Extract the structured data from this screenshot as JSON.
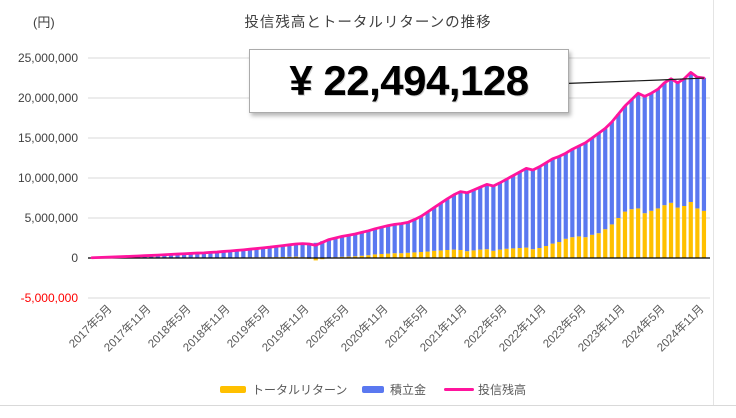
{
  "page": {
    "unit_label": "(円)",
    "title": "投信残高とトータルリターンの推移"
  },
  "callout": {
    "value_label": "¥ 22,494,128",
    "value": 22494128,
    "points_to_index": 93
  },
  "legend": [
    {
      "label": "トータルリターン",
      "color": "#FFC000",
      "swatch": "bar"
    },
    {
      "label": "積立金",
      "color": "#5A78F0",
      "swatch": "bar"
    },
    {
      "label": "投信残高",
      "color": "#FF149D",
      "swatch": "line"
    }
  ],
  "colors": {
    "gridline": "#D9D9D9",
    "zero_axis": "#000000",
    "title_text": "#404040",
    "axis_text": "#595959",
    "negative_tick": "#FF0000",
    "leader_line": "#1a1a1a"
  },
  "chart_data": {
    "type": "bar",
    "subtype": "stacked-bars-with-line",
    "title": "投信残高とトータルリターンの推移",
    "unit": "円",
    "n_points": 94,
    "y_axis": {
      "min": -5000000,
      "max": 25000000,
      "step": 5000000,
      "grid": true,
      "tick_labels": [
        "25,000,000",
        "20,000,000",
        "15,000,000",
        "10,000,000",
        "5,000,000",
        "0",
        "-5,000,000"
      ],
      "tick_values": [
        25000000,
        20000000,
        15000000,
        10000000,
        5000000,
        0,
        -5000000
      ]
    },
    "x_axis": {
      "tick_labels": [
        "2017年5月",
        "2017年11月",
        "2018年5月",
        "2018年11月",
        "2019年5月",
        "2019年11月",
        "2020年5月",
        "2020年11月",
        "2021年5月",
        "2021年11月",
        "2022年5月",
        "2022年11月",
        "2023年5月",
        "2023年11月",
        "2024年5月",
        "2024年11月"
      ],
      "tick_month_indices": [
        0,
        6,
        12,
        18,
        24,
        30,
        36,
        42,
        48,
        54,
        60,
        66,
        72,
        78,
        84,
        90
      ],
      "label_rotation_deg": 45
    },
    "legend_position": "bottom",
    "series": [
      {
        "name": "トータルリターン",
        "type": "bar",
        "stack": 0,
        "color": "#FFC000",
        "values": [
          2000,
          4000,
          7000,
          10000,
          12000,
          16000,
          20000,
          24000,
          28000,
          22000,
          30000,
          38000,
          42000,
          47000,
          52000,
          58000,
          65000,
          50000,
          60000,
          30000,
          50000,
          60000,
          70000,
          60000,
          80000,
          90000,
          100000,
          90000,
          110000,
          130000,
          150000,
          170000,
          100000,
          -100000,
          -300000,
          -150000,
          50000,
          100000,
          150000,
          180000,
          220000,
          280000,
          350000,
          450000,
          500000,
          550000,
          600000,
          600000,
          650000,
          700000,
          750000,
          800000,
          900000,
          950000,
          1000000,
          1050000,
          1000000,
          850000,
          950000,
          1050000,
          1100000,
          900000,
          1050000,
          1150000,
          1200000,
          1250000,
          1300000,
          1100000,
          1250000,
          1500000,
          1800000,
          2000000,
          2400000,
          2600000,
          2700000,
          2600000,
          2900000,
          3100000,
          3600000,
          4200000,
          5000000,
          5800000,
          6100000,
          6200000,
          5600000,
          5900000,
          6200000,
          6600000,
          6900000,
          6300000,
          6500000,
          7000000,
          6200000,
          5894128
        ]
      },
      {
        "name": "積立金",
        "type": "bar",
        "stack": 1,
        "color": "#5A78F0",
        "values": [
          28000,
          56000,
          83000,
          110000,
          138000,
          164000,
          190000,
          226000,
          262000,
          298000,
          330000,
          372000,
          408000,
          443000,
          478000,
          512000,
          555000,
          590000,
          640000,
          710000,
          770000,
          820000,
          880000,
          960000,
          1020000,
          1090000,
          1170000,
          1260000,
          1340000,
          1420000,
          1500000,
          1580000,
          1700000,
          1850000,
          1900000,
          2100000,
          2250000,
          2400000,
          2550000,
          2670000,
          2780000,
          2920000,
          3050000,
          3200000,
          3350000,
          3500000,
          3600000,
          3700000,
          3800000,
          4100000,
          4450000,
          4950000,
          5400000,
          5900000,
          6400000,
          6850000,
          7300000,
          7300000,
          7550000,
          7800000,
          8100000,
          8100000,
          8350000,
          8700000,
          9100000,
          9500000,
          9900000,
          9900000,
          10150000,
          10400000,
          10600000,
          10700000,
          10700000,
          11000000,
          11300000,
          11800000,
          12100000,
          12500000,
          12600000,
          12800000,
          13000000,
          13200000,
          13700000,
          14400000,
          14600000,
          14700000,
          14900000,
          15300000,
          15500000,
          15600000,
          15900000,
          16200000,
          16400000,
          16600000
        ]
      },
      {
        "name": "投信残高",
        "type": "line",
        "color": "#FF149D",
        "values": [
          30000,
          60000,
          90000,
          120000,
          150000,
          180000,
          210000,
          250000,
          290000,
          320000,
          360000,
          410000,
          450000,
          490000,
          530000,
          570000,
          620000,
          640000,
          700000,
          740000,
          820000,
          880000,
          950000,
          1020000,
          1100000,
          1180000,
          1270000,
          1350000,
          1450000,
          1550000,
          1650000,
          1750000,
          1800000,
          1750000,
          1600000,
          1950000,
          2300000,
          2500000,
          2700000,
          2850000,
          3000000,
          3200000,
          3400000,
          3650000,
          3850000,
          4050000,
          4200000,
          4300000,
          4450000,
          4800000,
          5200000,
          5750000,
          6300000,
          6850000,
          7400000,
          7900000,
          8300000,
          8150000,
          8500000,
          8850000,
          9200000,
          9000000,
          9400000,
          9850000,
          10300000,
          10750000,
          11200000,
          11000000,
          11400000,
          11900000,
          12400000,
          12700000,
          13100000,
          13600000,
          14000000,
          14400000,
          15000000,
          15600000,
          16200000,
          17000000,
          18000000,
          19000000,
          19800000,
          20600000,
          20200000,
          20600000,
          21100000,
          21900000,
          22400000,
          21900000,
          22400000,
          23200000,
          22600000,
          22494128
        ]
      }
    ],
    "annotation": {
      "text": "¥ 22,494,128",
      "value": 22494128,
      "target_point_index": 93
    }
  }
}
